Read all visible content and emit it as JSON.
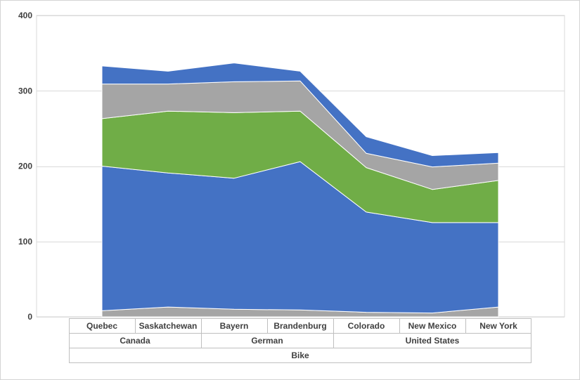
{
  "chart_data": {
    "type": "area",
    "stacked": true,
    "title": "",
    "xlabel": "",
    "ylabel": "",
    "ylim": [
      0,
      400
    ],
    "yticks": [
      0,
      100,
      200,
      300,
      400
    ],
    "grid": true,
    "legend": "none",
    "categories": [
      "Quebec",
      "Saskatchewan",
      "Bayern",
      "Brandenburg",
      "Colorado",
      "New Mexico",
      "New York"
    ],
    "category_groups": [
      {
        "label": "Canada",
        "span": 2
      },
      {
        "label": "German",
        "span": 2
      },
      {
        "label": "United States",
        "span": 3
      }
    ],
    "top_group": "Bike",
    "series": [
      {
        "color": "#a5a5a5",
        "values": [
          8,
          13,
          10,
          9,
          6,
          5,
          13
        ]
      },
      {
        "color": "#4472c4",
        "values": [
          192,
          178,
          174,
          197,
          133,
          120,
          112
        ]
      },
      {
        "color": "#70ad47",
        "values": [
          63,
          82,
          87,
          67,
          59,
          44,
          56
        ]
      },
      {
        "color": "#a5a5a5",
        "values": [
          46,
          36,
          41,
          40,
          19,
          30,
          23
        ]
      },
      {
        "color": "#4472c4",
        "values": [
          24,
          17,
          25,
          13,
          22,
          15,
          14
        ]
      }
    ]
  }
}
